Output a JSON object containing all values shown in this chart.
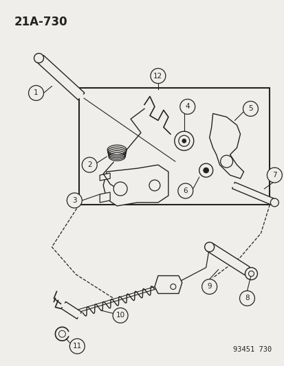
{
  "title": "21A-730",
  "background_color": "#f0eeea",
  "diagram_color": "#222222",
  "catalog_number": "93451 730",
  "figsize": [
    4.14,
    5.33
  ],
  "dpi": 100
}
